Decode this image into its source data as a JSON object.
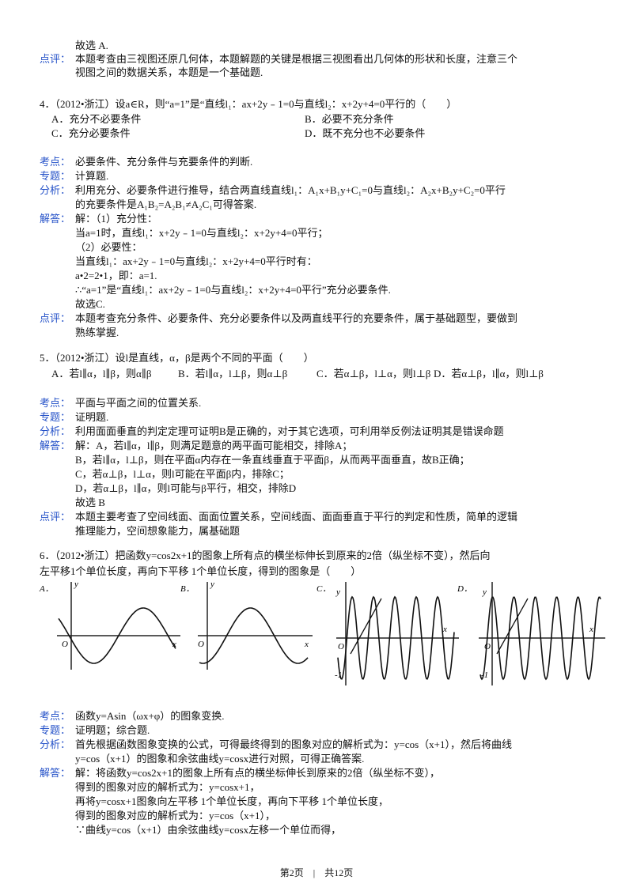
{
  "lines": [
    {
      "text": "故选 A."
    },
    {
      "label": "点评：",
      "text": "本题考查由三视图还原几何体，本题解题的关键是根据三视图看出几何体的形状和长度，注意三个"
    },
    {
      "text": "视图之间的数据关系，本题是一个基础题."
    },
    {
      "stem": "4．（2012•浙江）设a∈R，则“a=1”是“直线l₁：ax+2y﹣1=0与直线l₂：x+2y+4=0平行的（　　）"
    },
    {
      "options": [
        "A．充分不必要条件",
        "B．必要不充分条件"
      ]
    },
    {
      "options": [
        "C．充分必要条件",
        "D．既不充分也不必要条件"
      ]
    },
    {
      "label": "考点：",
      "text": "必要条件、充分条件与充要条件的判断."
    },
    {
      "label": "专题：",
      "text": "计算题."
    },
    {
      "label": "分析：",
      "text": "利用充分、必要条件进行推导，结合两直线直线l₁：A₁x+B₁y+C₁=0与直线l₂：A₂x+B₂y+C₂=0平行"
    },
    {
      "text": "的充要条件是A₁B₂=A₂B₁≠A₂C₁可得答案."
    },
    {
      "label": "解答：",
      "text": "解：（1）充分性："
    },
    {
      "text": "当a=1时，直线l₁：x+2y﹣1=0与直线l₂：x+2y+4=0平行；"
    },
    {
      "text": "（2）必要性："
    },
    {
      "text": "当直线l₁：ax+2y﹣1=0与直线l₂：x+2y+4=0平行时有："
    },
    {
      "text": "a•2=2•1，即：a=1."
    },
    {
      "text": "∴“a=1”是“直线l₁：ax+2y﹣1=0与直线l₂：x+2y+4=0平行”充分必要条件."
    },
    {
      "text": "故选C."
    },
    {
      "label": "点评：",
      "text": "本题考查充分条件、必要条件、充分必要条件以及两直线平行的充要条件，属于基础题型，要做到"
    },
    {
      "text": "熟练掌握."
    },
    {
      "stem": "5．（2012•浙江）设l是直线，α，β是两个不同的平面（　　）"
    },
    {
      "options": [
        "A．若l∥α，l∥β，则α∥β",
        "B．若l∥α，l⊥β，则α⊥β",
        "C．若α⊥β，l⊥α，则l⊥β",
        "D．若α⊥β，l∥α，则l⊥β"
      ]
    },
    {
      "label": "考点：",
      "text": "平面与平面之间的位置关系."
    },
    {
      "label": "专题：",
      "text": "证明题."
    },
    {
      "label": "分析：",
      "text": "利用面面垂直的判定定理可证明B是正确的，对于其它选项，可利用举反例法证明其是错误命题"
    },
    {
      "label": "解答：",
      "text": "解：A，若l∥α，l∥β，则满足题意的两平面可能相交，排除A；"
    },
    {
      "text": "B，若l∥α，l⊥β，则在平面α内存在一条直线垂直于平面β，从而两平面垂直，故B正确；"
    },
    {
      "text": "C，若α⊥β，l⊥α，则l可能在平面β内，排除C；"
    },
    {
      "text": "D，若α⊥β，l∥α，则l可能与β平行，相交，排除D"
    },
    {
      "text": "故选 B"
    },
    {
      "label": "点评：",
      "text": "本题主要考查了空间线面、面面位置关系，空间线面、面面垂直于平行的判定和性质，简单的逻辑"
    },
    {
      "text": "推理能力，空间想象能力，属基础题"
    },
    {
      "stem": "6．（2012•浙江）把函数y=cos2x+1的图象上所有点的横坐标伸长到原来的2倍（纵坐标不变），然后向"
    },
    {
      "stem": "左平移1个单位长度，再向下平移 1个单位长度，得到的图象是（　　）"
    },
    {
      "label": "考点：",
      "text": "函数y=Asin（ωx+φ）的图象变换."
    },
    {
      "label": "专题：",
      "text": "证明题；综合题."
    },
    {
      "label": "分析：",
      "text": "首先根据函数图象变换的公式，可得最终得到的图象对应的解析式为：y=cos（x+1），然后将曲线"
    },
    {
      "text": "y=cos（x+1）的图象和余弦曲线y=cosx进行对照，可得正确答案."
    },
    {
      "label": "解答：",
      "text": "解：将函数y=cos2x+1的图象上所有点的横坐标伸长到原来的2倍（纵坐标不变），"
    },
    {
      "text": "得到的图象对应的解析式为：y=cosx+1，"
    },
    {
      "text": "再将y=cosx+1图象向左平移 1个单位长度，再向下平移 1个单位长度，"
    },
    {
      "text": "得到的图象对应的解析式为：y=cos（x+1），"
    },
    {
      "text": "∵曲线y=cos（x+1）由余弦曲线y=cosx左移一个单位而得，"
    }
  ],
  "graphs": [
    {
      "option": "A．",
      "labels": [
        "y",
        "O",
        "x"
      ]
    },
    {
      "option": "B．",
      "labels": [
        "y",
        "O",
        "x"
      ]
    },
    {
      "option": "C．",
      "labels": [
        "y",
        "O",
        "-1",
        "x"
      ]
    },
    {
      "option": "D．",
      "labels": [
        "y",
        "O",
        "-1",
        "x"
      ]
    }
  ],
  "footer": "第2页　|　共12页"
}
